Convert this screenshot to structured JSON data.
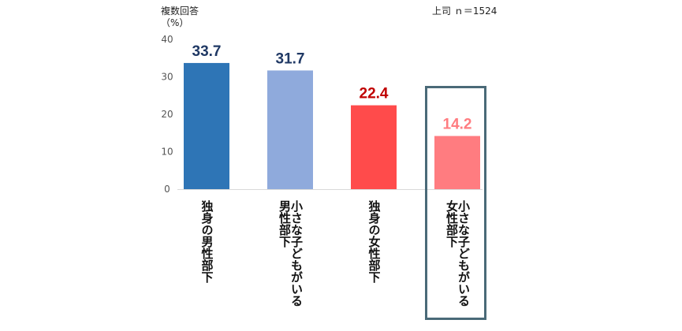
{
  "chart_data": {
    "type": "bar",
    "title": "",
    "ylabel_lines": [
      "複数回答",
      "（%）"
    ],
    "note": "上司 ｎ＝1524",
    "ylim": [
      0,
      40
    ],
    "yticks": [
      0,
      10,
      20,
      30,
      40
    ],
    "grid": false,
    "categories": [
      "独身の男性部下",
      "小さな子どもがいる\n男性部下",
      "独身の女性部下",
      "小さな子どもがいる\n女性部下"
    ],
    "values": [
      33.7,
      31.7,
      22.4,
      14.2
    ],
    "value_labels": [
      "33.7",
      "31.7",
      "22.4",
      "14.2"
    ],
    "colors": [
      "#2e75b6",
      "#8faadc",
      "#ff4b4b",
      "#ff7c80"
    ],
    "label_colors": [
      "#1f3864",
      "#1f3864",
      "#c00000",
      "#ff7c80"
    ],
    "highlighted_index": 3,
    "highlight_color": "#4a6a78"
  }
}
